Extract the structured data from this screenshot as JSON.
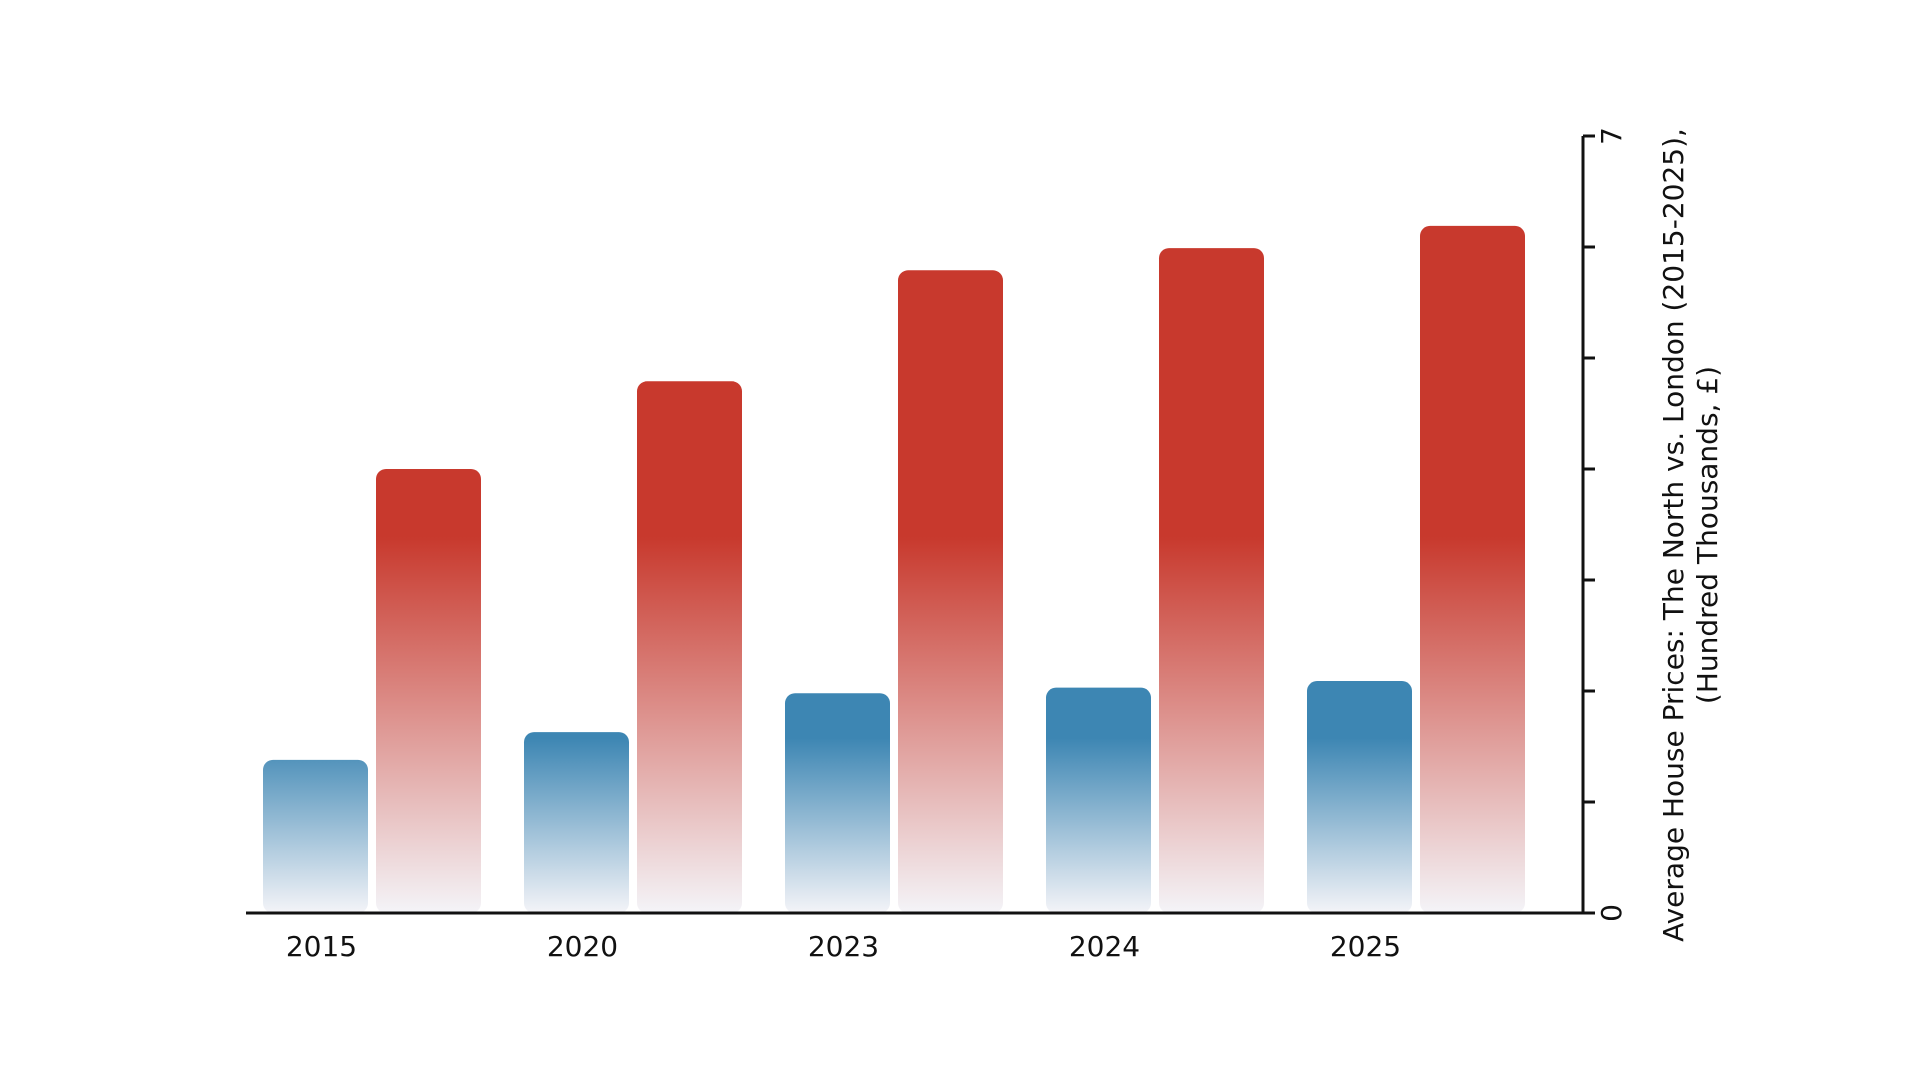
{
  "chart_data": {
    "type": "bar",
    "title_line1": "Average House Prices: The North vs. London (2015-2025),",
    "title_line2": "(Hundred Thousands, £)",
    "categories": [
      "2015",
      "2020",
      "2023",
      "2024",
      "2025"
    ],
    "series": [
      {
        "values": [
          1.38,
          1.63,
          1.98,
          2.03,
          2.09
        ],
        "color": "#3d86b3"
      },
      {
        "values": [
          4.0,
          4.79,
          5.79,
          5.99,
          6.19
        ],
        "color": "#c8392d"
      }
    ],
    "ylim": [
      0,
      7
    ],
    "y_tick_count": 8,
    "y_tick_labels": {
      "0": "0",
      "7": "7"
    },
    "fade_color": "#f4f4f8",
    "axis_color": "#111111"
  }
}
